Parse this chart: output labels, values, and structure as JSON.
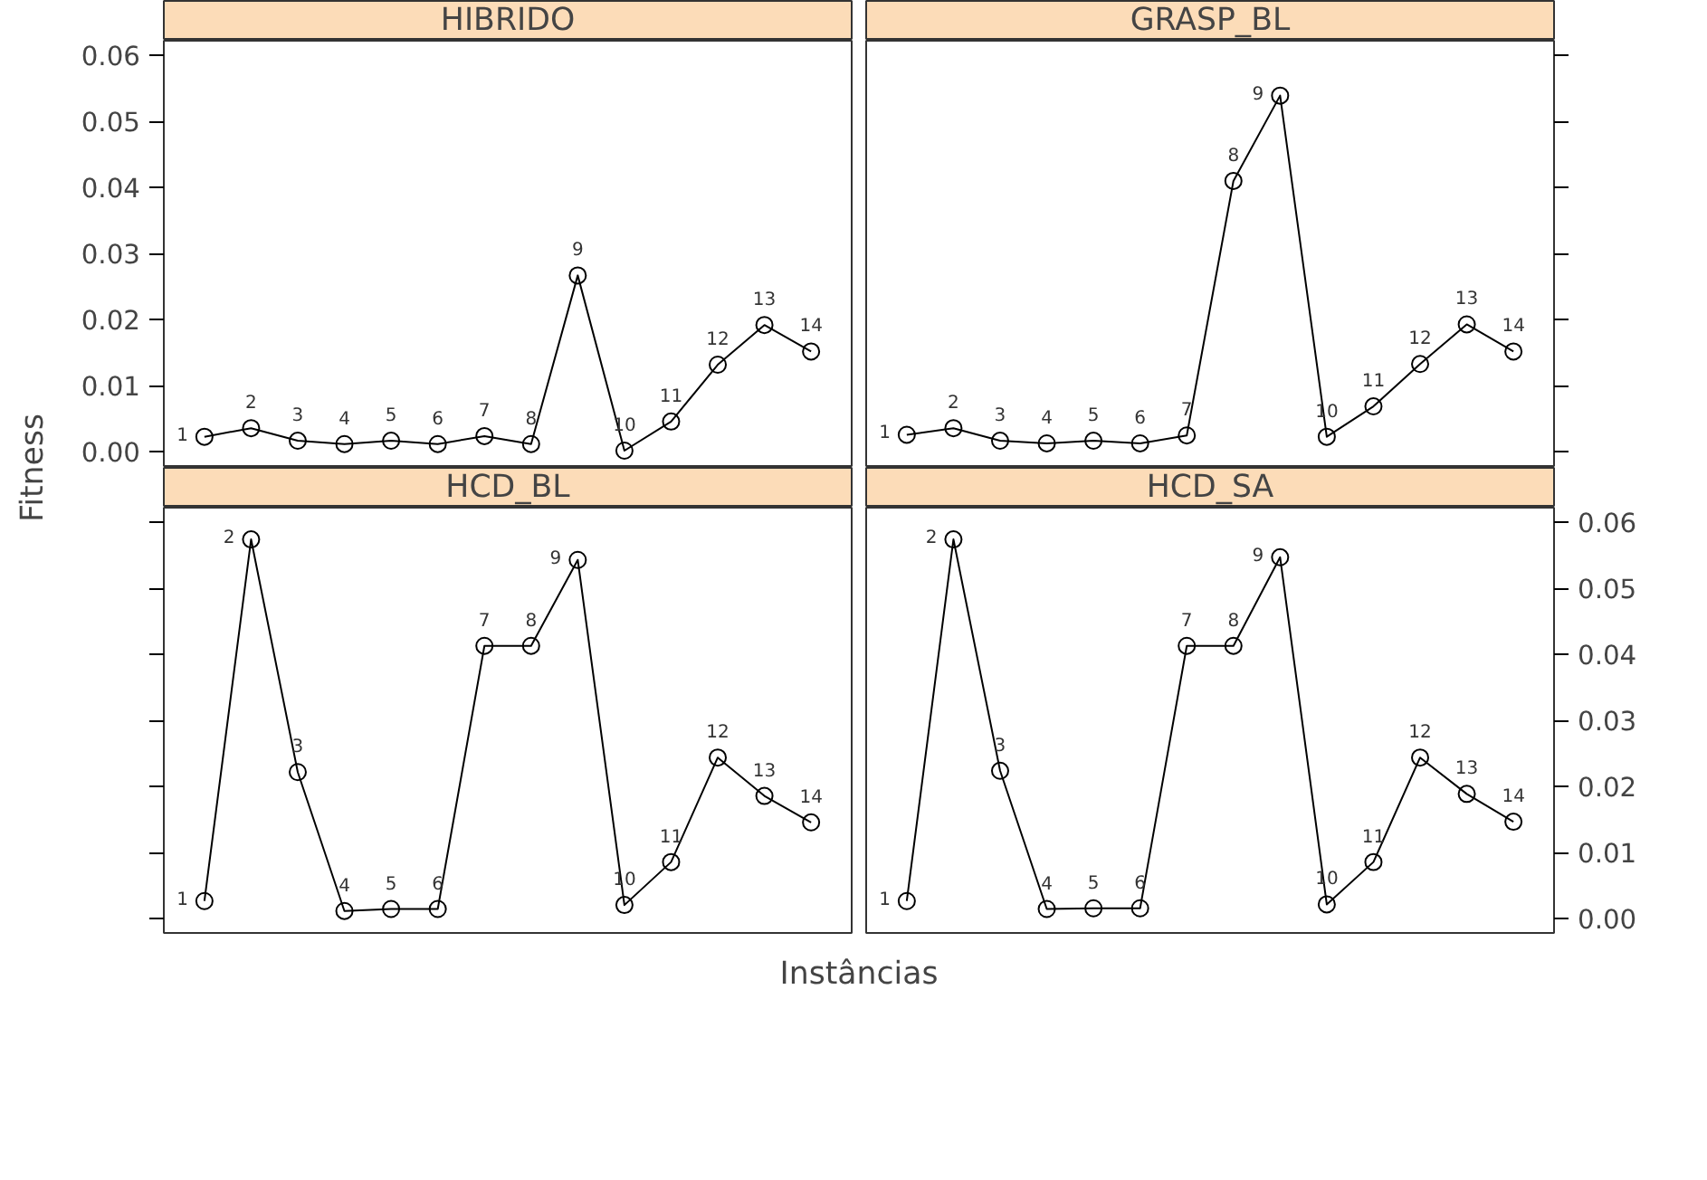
{
  "chart_data": [
    {
      "type": "line",
      "title": "HIBRIDO",
      "ylabel": "Fitness",
      "categories": [
        "1",
        "2",
        "3",
        "4",
        "5",
        "6",
        "7",
        "8",
        "9",
        "10",
        "11",
        "12",
        "13",
        "14"
      ],
      "series": [
        {
          "color": "#000000",
          "values": [
            0.0023,
            0.0036,
            0.0017,
            0.0012,
            0.0017,
            0.0012,
            0.0024,
            0.0012,
            0.0267,
            0.0002,
            0.0046,
            0.0132,
            0.0192,
            0.0152
          ]
        }
      ],
      "ylim": [
        -0.0024,
        0.0622
      ],
      "yticks": [
        {
          "value": 0,
          "label": "0.00"
        },
        {
          "value": 0.01,
          "label": "0.01"
        },
        {
          "value": 0.02,
          "label": "0.02"
        },
        {
          "value": 0.03,
          "label": "0.03"
        },
        {
          "value": 0.04,
          "label": "0.04"
        },
        {
          "value": 0.05,
          "label": "0.05"
        },
        {
          "value": 0.06,
          "label": "0.06"
        }
      ],
      "tick_labels": "y",
      "marker": "circle",
      "line_style": "solid",
      "grid": false
    },
    {
      "type": "line",
      "title": "GRASP_BL",
      "categories": [
        "1",
        "2",
        "3",
        "4",
        "5",
        "6",
        "7",
        "8",
        "9",
        "10",
        "11",
        "12",
        "13",
        "14"
      ],
      "series": [
        {
          "color": "#000000",
          "values": [
            0.0026,
            0.0036,
            0.0017,
            0.0013,
            0.0017,
            0.0013,
            0.0025,
            0.041,
            0.0539,
            0.0023,
            0.0069,
            0.0133,
            0.0193,
            0.0152
          ]
        }
      ],
      "ylim": [
        -0.0024,
        0.0622
      ],
      "yticks": [
        {
          "value": 0,
          "label": null
        },
        {
          "value": 0.01,
          "label": null
        },
        {
          "value": 0.02,
          "label": null
        },
        {
          "value": 0.03,
          "label": null
        },
        {
          "value": 0.04,
          "label": null
        },
        {
          "value": 0.05,
          "label": null
        },
        {
          "value": 0.06,
          "label": null
        }
      ],
      "tick_labels": false,
      "marker": "circle",
      "line_style": "solid",
      "grid": false
    },
    {
      "type": "line",
      "title": "HCD_BL",
      "xlabel": "Instâncias",
      "categories": [
        "1",
        "2",
        "3",
        "4",
        "5",
        "6",
        "7",
        "8",
        "9",
        "10",
        "11",
        "12",
        "13",
        "14"
      ],
      "series": [
        {
          "color": "#000000",
          "values": [
            0.0027,
            0.0574,
            0.0222,
            0.0012,
            0.0015,
            0.0015,
            0.0413,
            0.0413,
            0.0543,
            0.0021,
            0.0086,
            0.0244,
            0.0186,
            0.0146
          ]
        }
      ],
      "ylim": [
        -0.0024,
        0.0622
      ],
      "yticks": [
        {
          "value": 0,
          "label": null
        },
        {
          "value": 0.01,
          "label": null
        },
        {
          "value": 0.02,
          "label": null
        },
        {
          "value": 0.03,
          "label": null
        },
        {
          "value": 0.04,
          "label": null
        },
        {
          "value": 0.05,
          "label": null
        },
        {
          "value": 0.06,
          "label": null
        }
      ],
      "tick_labels": false,
      "marker": "circle",
      "line_style": "solid",
      "grid": false
    },
    {
      "type": "line",
      "title": "HCD_SA",
      "categories": [
        "1",
        "2",
        "3",
        "4",
        "5",
        "6",
        "7",
        "8",
        "9",
        "10",
        "11",
        "12",
        "13",
        "14"
      ],
      "series": [
        {
          "color": "#000000",
          "values": [
            0.0027,
            0.0574,
            0.0224,
            0.0015,
            0.0016,
            0.0016,
            0.0413,
            0.0413,
            0.0547,
            0.0022,
            0.0086,
            0.0244,
            0.0189,
            0.0147
          ]
        }
      ],
      "ylim": [
        -0.0024,
        0.0622
      ],
      "yticks": [
        {
          "value": 0,
          "label": "0.00"
        },
        {
          "value": 0.01,
          "label": "0.01"
        },
        {
          "value": 0.02,
          "label": "0.02"
        },
        {
          "value": 0.03,
          "label": "0.03"
        },
        {
          "value": 0.04,
          "label": "0.04"
        },
        {
          "value": 0.05,
          "label": "0.05"
        },
        {
          "value": 0.06,
          "label": "0.06"
        }
      ],
      "tick_labels": "y",
      "marker": "circle",
      "line_style": "solid",
      "grid": false
    }
  ]
}
